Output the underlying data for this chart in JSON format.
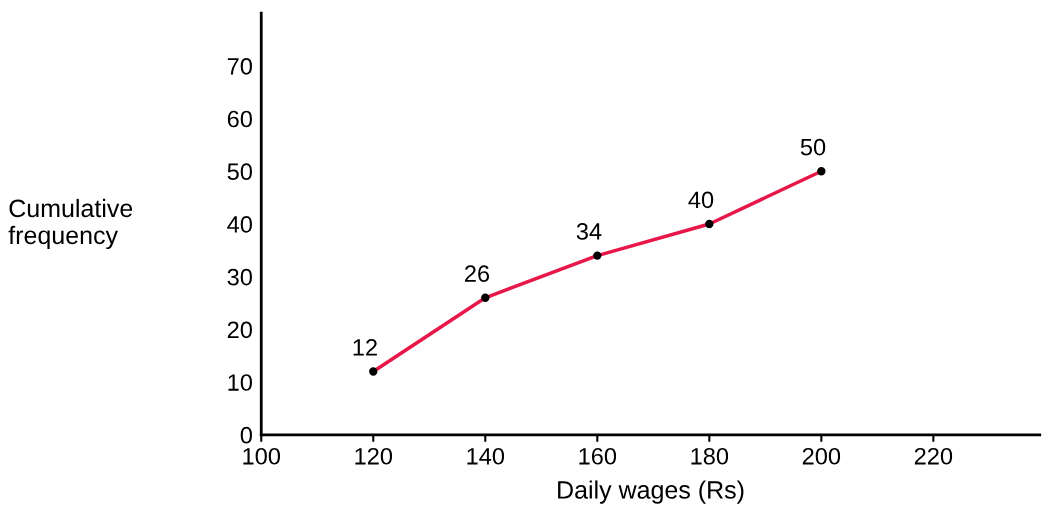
{
  "chart_data": {
    "type": "line",
    "xlabel": "Daily wages (Rs)",
    "ylabel": "Cumulative\nfrequency",
    "x": [
      120,
      140,
      160,
      180,
      200
    ],
    "series": [
      {
        "color": "#e8174a",
        "values": [
          12,
          26,
          34,
          40,
          50
        ]
      }
    ],
    "data_labels": true,
    "marker": "circle",
    "line_style": "solid",
    "grid": false,
    "legend": false,
    "xlim": [
      100,
      239
    ],
    "xticks": [
      100,
      120,
      140,
      160,
      180,
      200,
      220
    ],
    "ylim": [
      0,
      80
    ],
    "yticks": [
      0,
      10,
      20,
      30,
      40,
      50,
      60,
      70
    ]
  }
}
